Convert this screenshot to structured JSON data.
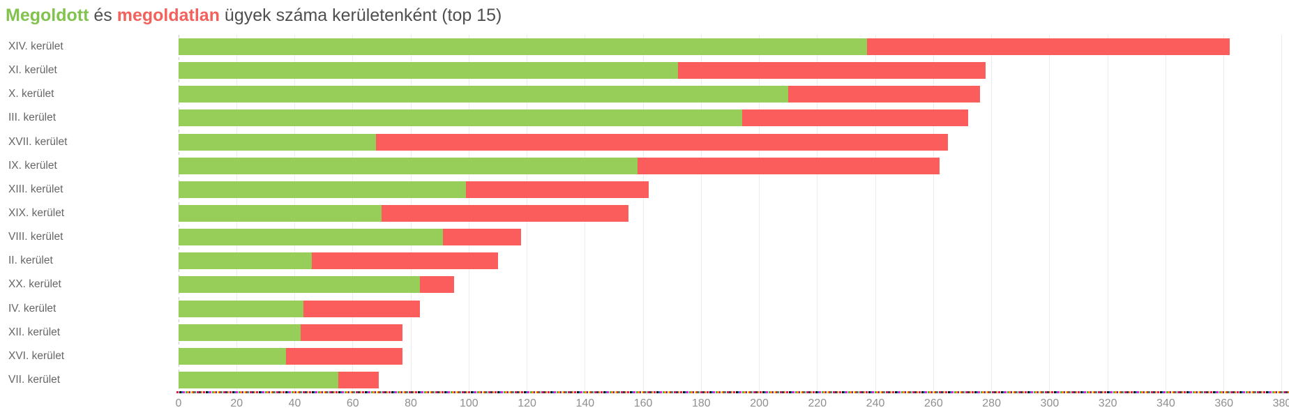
{
  "title": {
    "solved_word": "Megoldott",
    "conjunction": " és ",
    "unsolved_word": "megoldatlan",
    "rest": " ügyek száma kerületenként (top 15)"
  },
  "colors": {
    "bar_solved": "#96ce59",
    "bar_unsolved": "#fb5c5c",
    "title_solved": "#82c24e",
    "title_unsolved": "#f2615c",
    "title_text": "#4f4f4f",
    "row_label_text": "#666666",
    "tick_text": "#8f8f8f",
    "gridline": "#ececec"
  },
  "chart_data": {
    "type": "bar",
    "orientation": "horizontal",
    "stacked": true,
    "title": "Megoldott és megoldatlan ügyek száma kerületenként (top 15)",
    "categories": [
      "XIV. kerület",
      "XI. kerület",
      "X. kerület",
      "III. kerület",
      "XVII. kerület",
      "IX. kerület",
      "XIII. kerület",
      "XIX. kerület",
      "VIII. kerület",
      "II. kerület",
      "XX. kerület",
      "IV. kerület",
      "XII. kerület",
      "XVI. kerület",
      "VII. kerület"
    ],
    "series": [
      {
        "name": "Megoldott",
        "color": "#96ce59",
        "values": [
          237,
          172,
          210,
          194,
          68,
          158,
          99,
          70,
          91,
          46,
          83,
          43,
          42,
          37,
          55
        ]
      },
      {
        "name": "Megoldatlan",
        "color": "#fb5c5c",
        "values": [
          125,
          106,
          66,
          78,
          197,
          104,
          63,
          85,
          27,
          64,
          12,
          40,
          35,
          40,
          14
        ]
      }
    ],
    "totals": [
      362,
      278,
      276,
      272,
      265,
      262,
      162,
      155,
      118,
      110,
      95,
      83,
      77,
      77,
      69
    ],
    "xlabel": "",
    "ylabel": "",
    "xlim": [
      0,
      380
    ],
    "x_tick_step": 20,
    "x_ticks": [
      0,
      20,
      40,
      60,
      80,
      100,
      120,
      140,
      160,
      180,
      200,
      220,
      240,
      260,
      280,
      300,
      320,
      340,
      360,
      380
    ],
    "grid": "vertical",
    "legend": "none"
  }
}
